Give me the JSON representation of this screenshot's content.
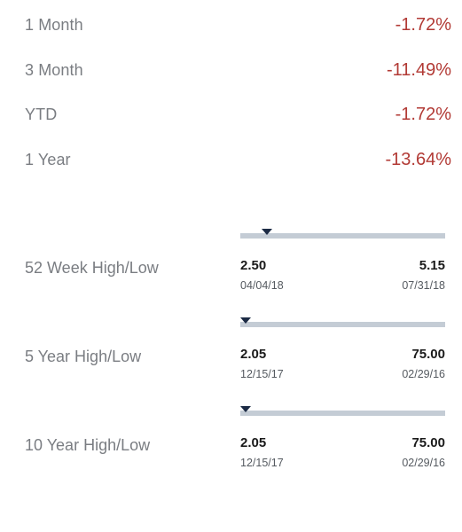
{
  "performance": [
    {
      "label": "1 Month",
      "value": "-1.72%"
    },
    {
      "label": "3 Month",
      "value": "-11.49%"
    },
    {
      "label": "YTD",
      "value": "-1.72%"
    },
    {
      "label": "1 Year",
      "value": "-13.64%"
    }
  ],
  "ranges": [
    {
      "label": "52 Week High/Low",
      "low": "2.50",
      "low_date": "04/04/18",
      "high": "5.15",
      "high_date": "07/31/18",
      "marker_fraction": 0.13
    },
    {
      "label": "5 Year High/Low",
      "low": "2.05",
      "low_date": "12/15/17",
      "high": "75.00",
      "high_date": "02/29/16",
      "marker_fraction": 0.0
    },
    {
      "label": "10 Year High/Low",
      "low": "2.05",
      "low_date": "12/15/17",
      "high": "75.00",
      "high_date": "02/29/16",
      "marker_fraction": 0.0
    }
  ],
  "colors": {
    "negative": "#b23a35",
    "label": "#7a7d82",
    "track": "#c4ccd5",
    "marker": "#1c2b45"
  },
  "icons": {
    "marker": "triangle-down-icon"
  }
}
